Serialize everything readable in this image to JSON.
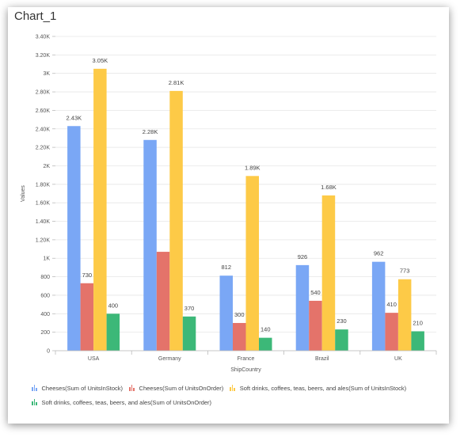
{
  "chart_data": {
    "type": "bar",
    "title": "Chart_1",
    "xlabel": "ShipCountry",
    "ylabel": "Values",
    "ylim": [
      0,
      3400
    ],
    "yticks": [
      0,
      200,
      400,
      600,
      800,
      1000,
      1200,
      1400,
      1600,
      1800,
      2000,
      2200,
      2400,
      2600,
      2800,
      3000,
      3200,
      3400
    ],
    "ytick_labels": [
      "0",
      "200",
      "400",
      "600",
      "800",
      "1K",
      "1.20K",
      "1.40K",
      "1.60K",
      "1.80K",
      "2K",
      "2.20K",
      "2.40K",
      "2.60K",
      "2.80K",
      "3K",
      "3.20K",
      "3.40K"
    ],
    "categories": [
      "USA",
      "Germany",
      "France",
      "Brazil",
      "UK"
    ],
    "grid": true,
    "legend_position": "bottom",
    "series": [
      {
        "name": "Cheeses(Sum of UnitsInStock)",
        "color": "#7aa7f5",
        "values": [
          2430,
          2280,
          812,
          926,
          962
        ],
        "labels": [
          "2.43K",
          "2.28K",
          "812",
          "926",
          "962"
        ]
      },
      {
        "name": "Cheeses(Sum of UnitsOnOrder)",
        "color": "#e4736a",
        "values": [
          730,
          1070,
          300,
          540,
          410
        ],
        "labels": [
          "730",
          "",
          "300",
          "540",
          "410"
        ]
      },
      {
        "name": "Soft drinks, coffees, teas, beers, and ales(Sum of UnitsInStock)",
        "color": "#fdca47",
        "values": [
          3050,
          2810,
          1890,
          1680,
          773
        ],
        "labels": [
          "3.05K",
          "2.81K",
          "1.89K",
          "1.68K",
          "773"
        ]
      },
      {
        "name": "Soft drinks, coffees, teas, beers, and ales(Sum of UnitsOnOrder)",
        "color": "#3cb878",
        "values": [
          400,
          370,
          140,
          230,
          210
        ],
        "labels": [
          "400",
          "370",
          "140",
          "230",
          "210"
        ]
      }
    ]
  }
}
